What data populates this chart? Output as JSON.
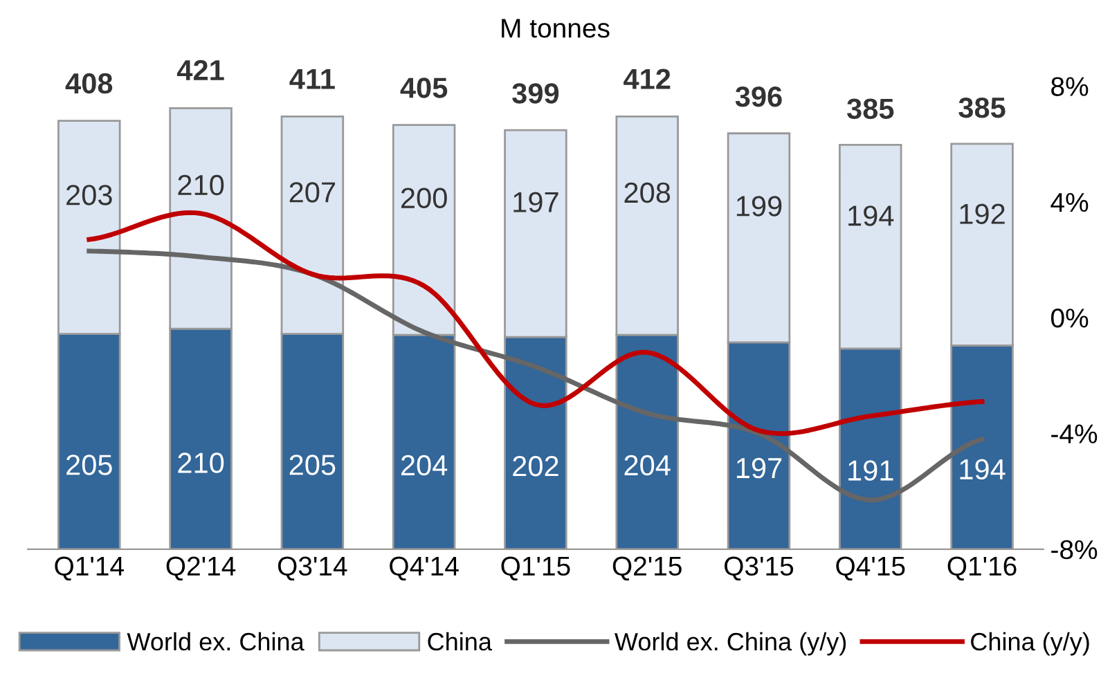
{
  "chart_data": {
    "type": "bar",
    "ylabel": "M tonnes",
    "stacked": true,
    "legend": "bottom",
    "grid": false,
    "categories": [
      "Q1'14",
      "Q2'14",
      "Q3'14",
      "Q4'14",
      "Q1'15",
      "Q2'15",
      "Q3'15",
      "Q4'15",
      "Q1'16"
    ],
    "totals": [
      "408",
      "421",
      "411",
      "405",
      "399",
      "412",
      "396",
      "385",
      "385"
    ],
    "y2lim": [
      -8,
      8
    ],
    "y2ticks": [
      {
        "value": 8,
        "label": "8%"
      },
      {
        "value": 4,
        "label": "4%"
      },
      {
        "value": 0,
        "label": "0%"
      },
      {
        "value": -4,
        "label": "-4%"
      },
      {
        "value": -8,
        "label": "-8%"
      }
    ],
    "series": [
      {
        "name": "World ex. China",
        "color": "#336699",
        "values": [
          205,
          210,
          205,
          204,
          202,
          204,
          197,
          191,
          194
        ],
        "value_labels": [
          "205",
          "210",
          "205",
          "204",
          "202",
          "204",
          "197",
          "191",
          "194"
        ]
      },
      {
        "name": "China",
        "color": "#dce6f2",
        "values": [
          203,
          210,
          207,
          200,
          197,
          208,
          199,
          194,
          192
        ],
        "value_labels": [
          "203",
          "210",
          "207",
          "200",
          "197",
          "208",
          "199",
          "194",
          "192"
        ]
      },
      {
        "name": "World ex. China (y/y)",
        "type": "line",
        "axis": "y2",
        "color": "#666666",
        "values": [
          2.3,
          2.1,
          1.5,
          -0.5,
          -1.7,
          -3.3,
          -4.0,
          -6.3,
          -4.2
        ]
      },
      {
        "name": "China (y/y)",
        "type": "line",
        "axis": "y2",
        "color": "#c00000",
        "values": [
          2.7,
          3.6,
          1.5,
          1.1,
          -3.0,
          -1.2,
          -3.9,
          -3.4,
          -2.9
        ]
      }
    ]
  }
}
